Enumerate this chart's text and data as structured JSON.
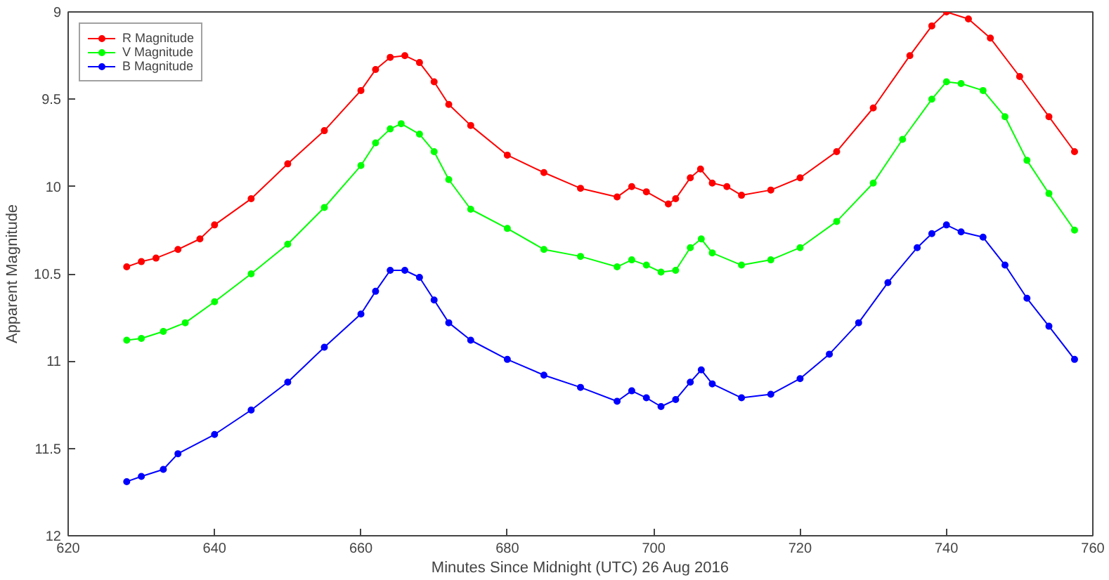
{
  "chart_data": {
    "type": "line",
    "xlabel": "Minutes Since Midnight (UTC) 26 Aug 2016",
    "ylabel": "Apparent Magnitude",
    "xlim": [
      620,
      760
    ],
    "xticks": [
      620,
      640,
      660,
      680,
      700,
      720,
      740,
      760
    ],
    "ylim": [
      12,
      9
    ],
    "yticks": [
      9,
      9.5,
      10,
      10.5,
      11,
      11.5,
      12
    ],
    "grid": false,
    "legend": "top left",
    "marker": "circle",
    "line_style": "solid",
    "series": [
      {
        "name": "R Magnitude",
        "color": "#ff0000",
        "x": [
          628,
          630,
          632,
          635,
          638,
          640,
          645,
          650,
          655,
          660,
          662,
          664,
          666,
          668,
          670,
          672,
          675,
          680,
          685,
          690,
          695,
          697,
          699,
          702,
          703,
          705,
          706.4,
          708,
          710,
          712,
          716,
          720,
          725,
          730,
          735,
          738,
          740,
          743,
          746,
          750,
          754,
          757.5
        ],
        "values": [
          10.46,
          10.43,
          10.41,
          10.36,
          10.3,
          10.22,
          10.07,
          9.87,
          9.68,
          9.45,
          9.33,
          9.26,
          9.25,
          9.29,
          9.4,
          9.53,
          9.65,
          9.82,
          9.92,
          10.01,
          10.06,
          10.0,
          10.03,
          10.1,
          10.07,
          9.95,
          9.9,
          9.98,
          10.0,
          10.05,
          10.02,
          9.95,
          9.8,
          9.55,
          9.25,
          9.08,
          9.0,
          9.04,
          9.15,
          9.37,
          9.6,
          9.8
        ]
      },
      {
        "name": "V Magnitude",
        "color": "#00ff00",
        "x": [
          628,
          630,
          633,
          636,
          640,
          645,
          650,
          655,
          660,
          662,
          664,
          665.5,
          668,
          670,
          672,
          675,
          680,
          685,
          690,
          695,
          697,
          699,
          701,
          703,
          705,
          706.5,
          708,
          712,
          716,
          720,
          725,
          730,
          734,
          738,
          740,
          742,
          745,
          748,
          751,
          754,
          757.5
        ],
        "values": [
          10.88,
          10.87,
          10.83,
          10.78,
          10.66,
          10.5,
          10.33,
          10.12,
          9.88,
          9.75,
          9.67,
          9.64,
          9.7,
          9.8,
          9.96,
          10.13,
          10.24,
          10.36,
          10.4,
          10.46,
          10.42,
          10.45,
          10.49,
          10.48,
          10.35,
          10.3,
          10.38,
          10.45,
          10.42,
          10.35,
          10.2,
          9.98,
          9.73,
          9.5,
          9.4,
          9.41,
          9.45,
          9.6,
          9.85,
          10.04,
          10.25
        ]
      },
      {
        "name": "B Magnitude",
        "color": "#0000ff",
        "x": [
          628,
          630,
          633,
          635,
          640,
          645,
          650,
          655,
          660,
          662,
          664,
          666,
          668,
          670,
          672,
          675,
          680,
          685,
          690,
          695,
          697,
          699,
          701,
          703,
          705,
          706.5,
          708,
          712,
          716,
          720,
          724,
          728,
          732,
          736,
          738,
          740,
          742,
          745,
          748,
          751,
          754,
          757.5
        ],
        "values": [
          11.69,
          11.66,
          11.62,
          11.53,
          11.42,
          11.28,
          11.12,
          10.92,
          10.73,
          10.6,
          10.48,
          10.48,
          10.52,
          10.65,
          10.78,
          10.88,
          10.99,
          11.08,
          11.15,
          11.23,
          11.17,
          11.21,
          11.26,
          11.22,
          11.12,
          11.05,
          11.13,
          11.21,
          11.19,
          11.1,
          10.96,
          10.78,
          10.55,
          10.35,
          10.27,
          10.22,
          10.26,
          10.29,
          10.45,
          10.64,
          10.8,
          10.99
        ]
      }
    ]
  }
}
